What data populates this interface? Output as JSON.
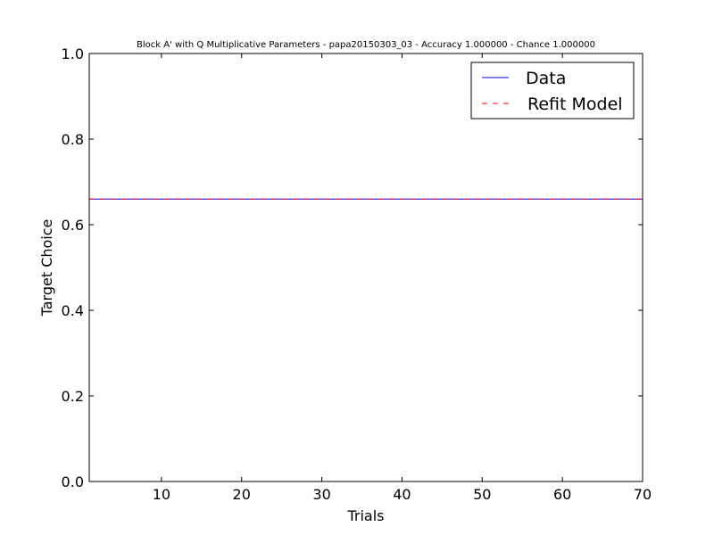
{
  "chart_data": {
    "type": "line",
    "title": "Block A' with Q Multiplicative Parameters - papa20150303_03 - Accuracy 1.000000 - Chance 1.000000",
    "xlabel": "Trials",
    "ylabel": "Target Choice",
    "xlim": [
      1,
      70
    ],
    "ylim": [
      0.0,
      1.0
    ],
    "xticks": [
      10,
      20,
      30,
      40,
      50,
      60,
      70
    ],
    "xtick_labels": [
      "10",
      "20",
      "30",
      "40",
      "50",
      "60",
      "70"
    ],
    "yticks": [
      0.0,
      0.2,
      0.4,
      0.6,
      0.8,
      1.0
    ],
    "ytick_labels": [
      "0.0",
      "0.2",
      "0.4",
      "0.6",
      "0.8",
      "1.0"
    ],
    "grid": false,
    "legend_position": "top-right",
    "series": [
      {
        "name": "Data",
        "color": "#0000ff",
        "style": "solid",
        "x": [
          1,
          70
        ],
        "y": [
          0.66,
          0.66
        ]
      },
      {
        "name": "Refit Model",
        "color": "#ff0000",
        "style": "dashed",
        "x": [
          1,
          70
        ],
        "y": [
          0.66,
          0.66
        ]
      }
    ]
  }
}
